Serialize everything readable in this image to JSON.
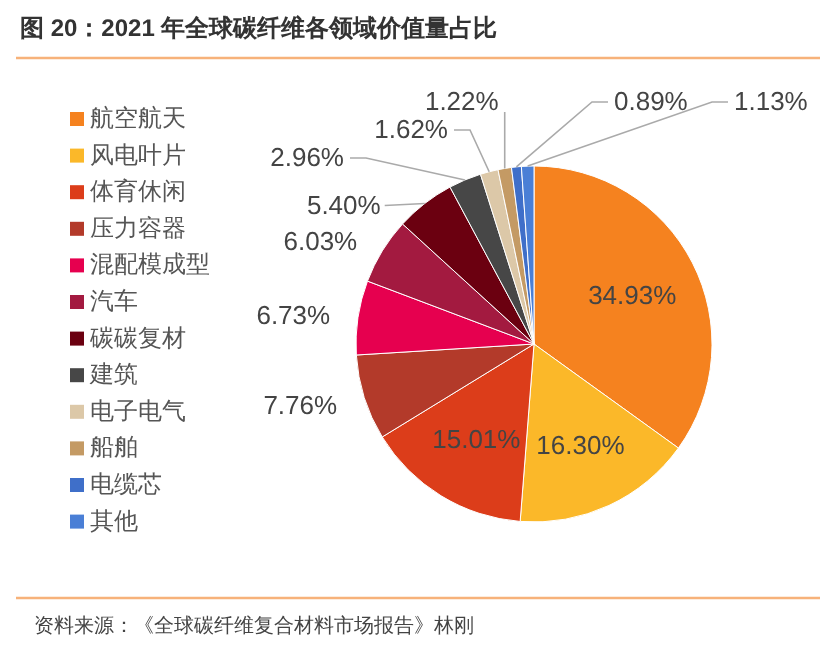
{
  "chart_data": {
    "type": "pie",
    "title": "图 20：2021 年全球碳纤维各领域价值量占比",
    "categories": [
      "航空航天",
      "风电叶片",
      "体育休闲",
      "压力容器",
      "混配模成型",
      "汽车",
      "碳碳复材",
      "建筑",
      "电子电气",
      "船舶",
      "电缆芯",
      "其他"
    ],
    "values": [
      34.93,
      16.3,
      15.01,
      7.76,
      6.73,
      6.03,
      5.4,
      2.96,
      1.62,
      1.22,
      0.89,
      1.13
    ],
    "value_labels": [
      "34.93%",
      "16.30%",
      "15.01%",
      "7.76%",
      "6.73%",
      "6.03%",
      "5.40%",
      "2.96%",
      "1.62%",
      "1.22%",
      "0.89%",
      "1.13%"
    ],
    "colors": [
      "#f5821f",
      "#fbb829",
      "#dc3d1a",
      "#b33a2a",
      "#e6004f",
      "#a31a40",
      "#6b0010",
      "#474747",
      "#dcc8a8",
      "#c49a64",
      "#3f6fc9",
      "#4a7fd6"
    ],
    "legend": "left",
    "annotations": [
      "资料来源：《全球碳纤维复合材料市场报告》林刚"
    ]
  }
}
